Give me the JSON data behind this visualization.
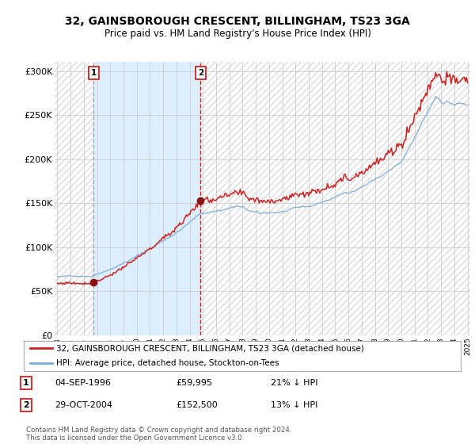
{
  "title": "32, GAINSBOROUGH CRESCENT, BILLINGHAM, TS23 3GA",
  "subtitle": "Price paid vs. HM Land Registry's House Price Index (HPI)",
  "sale1_price": 59995,
  "sale1_label": "04-SEP-1996",
  "sale1_pct": "21% ↓ HPI",
  "sale2_price": 152500,
  "sale2_label": "29-OCT-2004",
  "sale2_pct": "13% ↓ HPI",
  "legend1": "32, GAINSBOROUGH CRESCENT, BILLINGHAM, TS23 3GA (detached house)",
  "legend2": "HPI: Average price, detached house, Stockton-on-Tees",
  "footer": "Contains HM Land Registry data © Crown copyright and database right 2024.\nThis data is licensed under the Open Government Licence v3.0.",
  "hpi_color": "#7aaadd",
  "price_color": "#cc2222",
  "sale_marker_color": "#881111",
  "bg_color": "#ffffff",
  "shaded_color": "#ddeeff",
  "hatch_color": "#dddddd",
  "grid_color": "#cccccc",
  "vline1_color": "#aaaaaa",
  "vline2_color": "#cc2222",
  "ylim": [
    0,
    310000
  ],
  "yticks": [
    0,
    50000,
    100000,
    150000,
    200000,
    250000,
    300000
  ],
  "ytick_labels": [
    "£0",
    "£50K",
    "£100K",
    "£150K",
    "£200K",
    "£250K",
    "£300K"
  ],
  "xstart_year": 1994,
  "xend_year": 2025,
  "s1_year_float": 1996.75,
  "s2_year_float": 2004.833
}
